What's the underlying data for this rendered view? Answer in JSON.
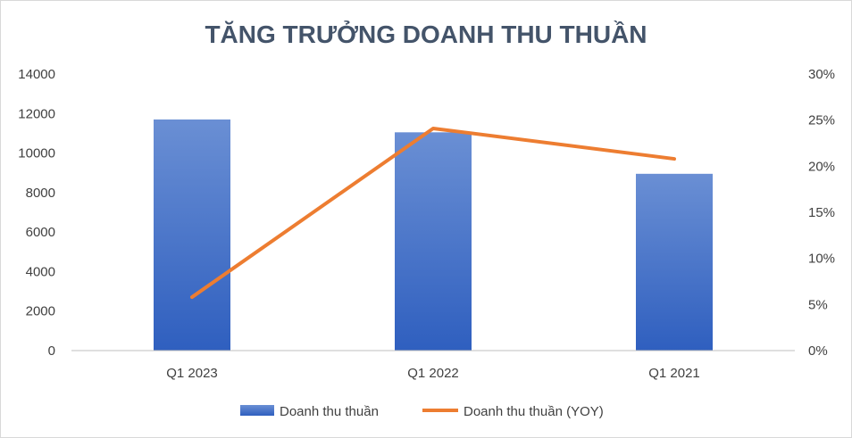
{
  "chart_data": {
    "type": "bar",
    "title": "TĂNG TRƯỞNG DOANH THU THUẦN",
    "categories": [
      "Q1 2023",
      "Q1 2022",
      "Q1 2021"
    ],
    "series": [
      {
        "name": "Doanh thu thuần",
        "type": "bar",
        "axis": "left",
        "values": [
          11700,
          11050,
          8950
        ],
        "color": "#4472c4"
      },
      {
        "name": "Doanh thu thuần (YOY)",
        "type": "line",
        "axis": "right",
        "values": [
          0.058,
          0.241,
          0.208
        ],
        "color": "#ed7d31"
      }
    ],
    "y_left": {
      "ylim": [
        0,
        14000
      ],
      "ticks": [
        "0",
        "2000",
        "4000",
        "6000",
        "8000",
        "10000",
        "12000",
        "14000"
      ]
    },
    "y_right": {
      "ylim": [
        0,
        0.3
      ],
      "ticks": [
        "0%",
        "5%",
        "10%",
        "15%",
        "20%",
        "25%",
        "30%"
      ]
    },
    "grid": false,
    "legend": "bottom"
  }
}
